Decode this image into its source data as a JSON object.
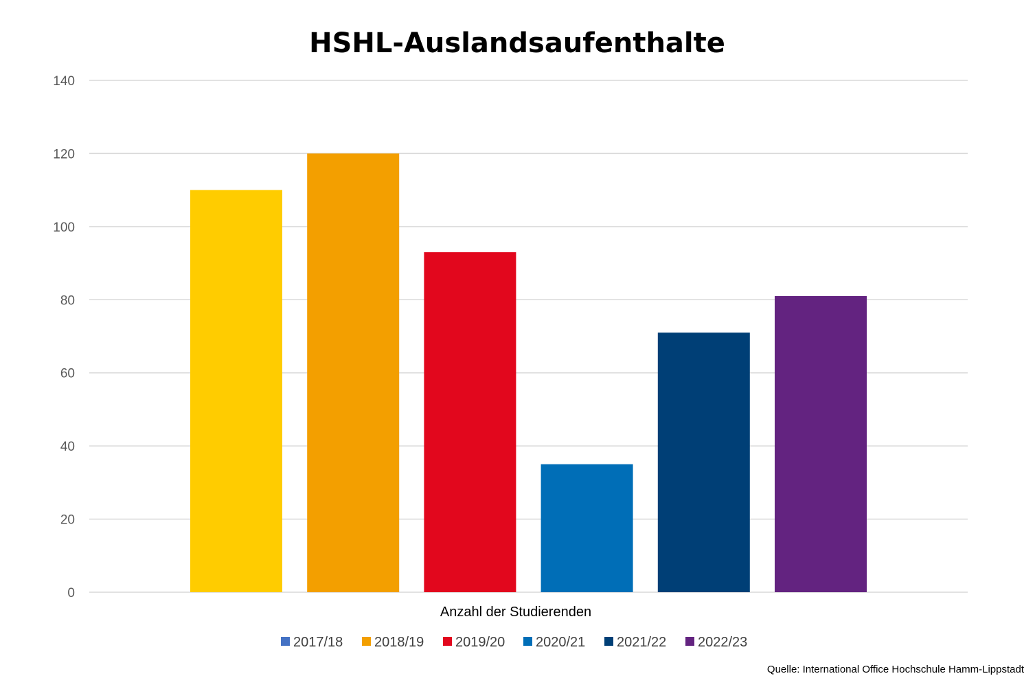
{
  "chart_data": {
    "type": "bar",
    "title": "HSHL-Auslandsaufenthalte",
    "xlabel": "Anzahl der Studierenden",
    "ylabel": "",
    "ylim": [
      0,
      140
    ],
    "yticks": [
      0,
      20,
      40,
      60,
      80,
      100,
      120,
      140
    ],
    "grid": true,
    "legend": "bottom",
    "series": [
      {
        "name": "2017/18",
        "value": 110,
        "color": "#ffcc00",
        "legend_color": "#4472c4"
      },
      {
        "name": "2018/19",
        "value": 120,
        "color": "#f39f00",
        "legend_color": "#f39f00"
      },
      {
        "name": "2019/20",
        "value": 93,
        "color": "#e2071d",
        "legend_color": "#e2071d"
      },
      {
        "name": "2020/21",
        "value": 35,
        "color": "#006eb7",
        "legend_color": "#006eb7"
      },
      {
        "name": "2021/22",
        "value": 71,
        "color": "#003f76",
        "legend_color": "#003f76"
      },
      {
        "name": "2022/23",
        "value": 81,
        "color": "#632380",
        "legend_color": "#632380"
      }
    ],
    "source": "Quelle: International Office Hochschule Hamm-Lippstadt"
  }
}
